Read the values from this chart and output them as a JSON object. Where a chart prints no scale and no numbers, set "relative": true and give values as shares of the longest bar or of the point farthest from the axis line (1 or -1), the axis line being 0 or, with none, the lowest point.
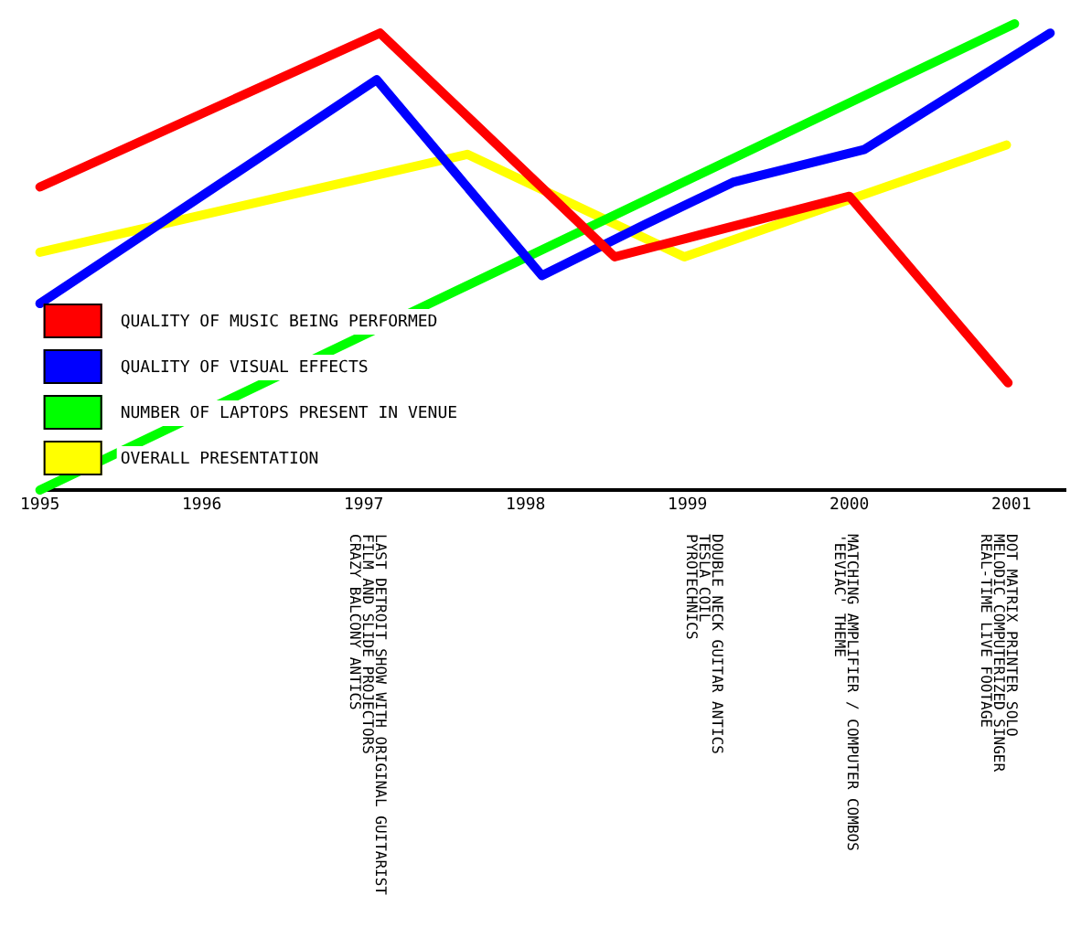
{
  "chart_data": {
    "type": "line",
    "relative": true,
    "xlim": [
      1995,
      2001.34
    ],
    "xticks": [
      1995,
      1996,
      1997,
      1998,
      1999,
      2000,
      2001
    ],
    "grid": false,
    "legend": "bottom left",
    "marker": "none",
    "line_style": "solid",
    "series": [
      {
        "name": "QUALITY OF MUSIC BEING PERFORMED",
        "color": "#ff0000",
        "x": [
          1995,
          1997.1,
          1998.55,
          2000.0,
          2000.98
        ],
        "values": [
          0.65,
          0.98,
          0.5,
          0.63,
          0.23
        ]
      },
      {
        "name": "QUALITY OF VISUAL EFFECTS",
        "color": "#0000ff",
        "x": [
          1995,
          1997.08,
          1998.1,
          1998.74,
          1999.28,
          2000.09,
          2001.24
        ],
        "values": [
          0.4,
          0.88,
          0.46,
          0.57,
          0.66,
          0.73,
          0.98
        ]
      },
      {
        "name": "NUMBER OF LAPTOPS PRESENT IN VENUE",
        "color": "#00ff00",
        "x": [
          1995,
          2001.02
        ],
        "values": [
          0,
          1
        ]
      },
      {
        "name": "OVERALL PRESENTATION",
        "color": "#ffff00",
        "x": [
          1995,
          1997.64,
          1998.98,
          2000.97
        ],
        "values": [
          0.51,
          0.72,
          0.5,
          0.74
        ]
      }
    ],
    "annotations": [
      "LAST DETROIT SHOW WITH ORIGINAL GUITARIST\nFILM AND SLIDE PROJECTORS\nCRAZY BALCONY ANTICS",
      "DOUBLE NECK GUITAR ANTICS\nTESLA COIL\nPYROTECHNICS",
      "MATCHING AMPLIFIER / COMPUTER COMBOS\n'EEVIAC' THEME",
      "DOT MATRIX PRINTER SOLO\nMELODIC COMPUTERIZED SINGER\nREAL-TIME LIVE FOOTAGE"
    ]
  }
}
